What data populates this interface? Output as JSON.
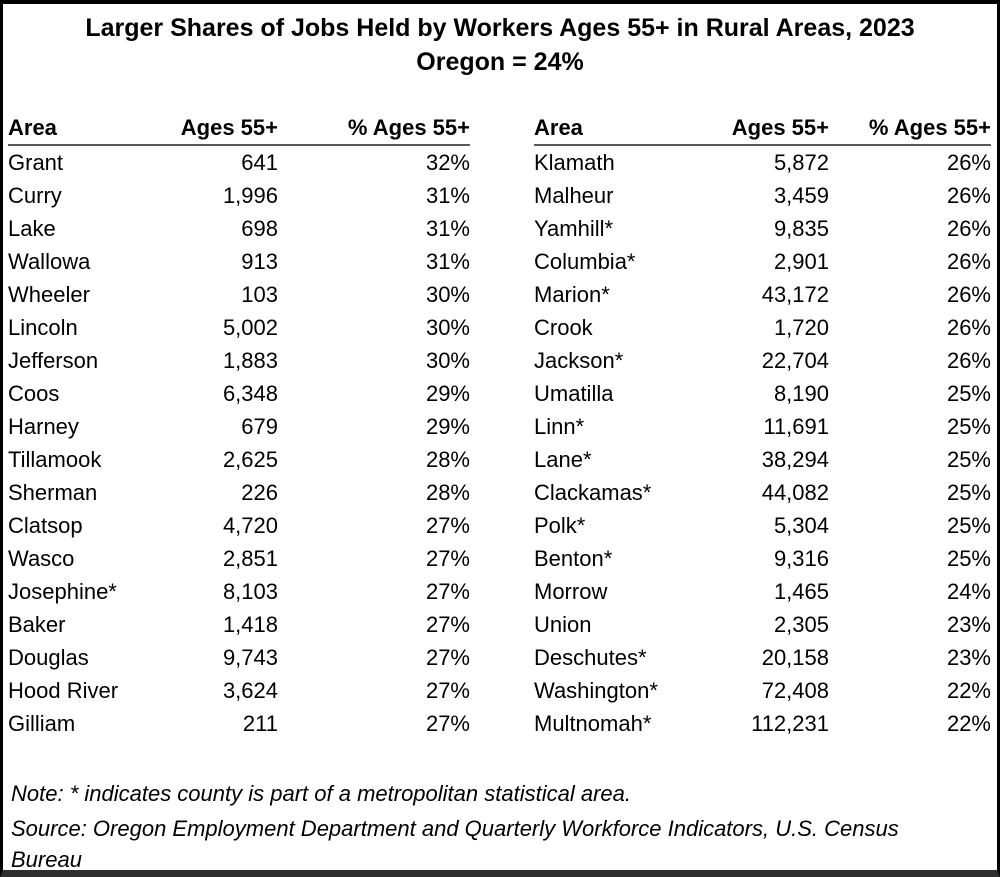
{
  "chart_data": {
    "type": "table",
    "title": "Larger Shares of Jobs Held by Workers Ages 55+ in Rural Areas, 2023",
    "subtitle": "Oregon = 24%",
    "columns": [
      "Area",
      "Ages 55+",
      "% Ages 55+"
    ],
    "panels": [
      {
        "rows": [
          [
            "Grant",
            "641",
            "32%"
          ],
          [
            "Curry",
            "1,996",
            "31%"
          ],
          [
            "Lake",
            "698",
            "31%"
          ],
          [
            "Wallowa",
            "913",
            "31%"
          ],
          [
            "Wheeler",
            "103",
            "30%"
          ],
          [
            "Lincoln",
            "5,002",
            "30%"
          ],
          [
            "Jefferson",
            "1,883",
            "30%"
          ],
          [
            "Coos",
            "6,348",
            "29%"
          ],
          [
            "Harney",
            "679",
            "29%"
          ],
          [
            "Tillamook",
            "2,625",
            "28%"
          ],
          [
            "Sherman",
            "226",
            "28%"
          ],
          [
            "Clatsop",
            "4,720",
            "27%"
          ],
          [
            "Wasco",
            "2,851",
            "27%"
          ],
          [
            "Josephine*",
            "8,103",
            "27%"
          ],
          [
            "Baker",
            "1,418",
            "27%"
          ],
          [
            "Douglas",
            "9,743",
            "27%"
          ],
          [
            "Hood River",
            "3,624",
            "27%"
          ],
          [
            "Gilliam",
            "211",
            "27%"
          ]
        ]
      },
      {
        "rows": [
          [
            "Klamath",
            "5,872",
            "26%"
          ],
          [
            "Malheur",
            "3,459",
            "26%"
          ],
          [
            "Yamhill*",
            "9,835",
            "26%"
          ],
          [
            "Columbia*",
            "2,901",
            "26%"
          ],
          [
            "Marion*",
            "43,172",
            "26%"
          ],
          [
            "Crook",
            "1,720",
            "26%"
          ],
          [
            "Jackson*",
            "22,704",
            "26%"
          ],
          [
            "Umatilla",
            "8,190",
            "25%"
          ],
          [
            "Linn*",
            "11,691",
            "25%"
          ],
          [
            "Lane*",
            "38,294",
            "25%"
          ],
          [
            "Clackamas*",
            "44,082",
            "25%"
          ],
          [
            "Polk*",
            "5,304",
            "25%"
          ],
          [
            "Benton*",
            "9,316",
            "25%"
          ],
          [
            "Morrow",
            "1,465",
            "24%"
          ],
          [
            "Union",
            "2,305",
            "23%"
          ],
          [
            "Deschutes*",
            "20,158",
            "23%"
          ],
          [
            "Washington*",
            "72,408",
            "22%"
          ],
          [
            "Multnomah*",
            "112,231",
            "22%"
          ]
        ]
      }
    ],
    "note": "Note: * indicates county is part of a metropolitan statistical area.",
    "source": "Source: Oregon Employment Department and Quarterly Workforce Indicators, U.S. Census Bureau",
    "layout_hints": {
      "grid": false,
      "panel_count": 2
    }
  },
  "colors": {
    "background": "#ffffff",
    "text": "#000000",
    "outer_border": "#000000",
    "bottom_bar": "#2e2e2e",
    "header_rule": "#595959"
  }
}
